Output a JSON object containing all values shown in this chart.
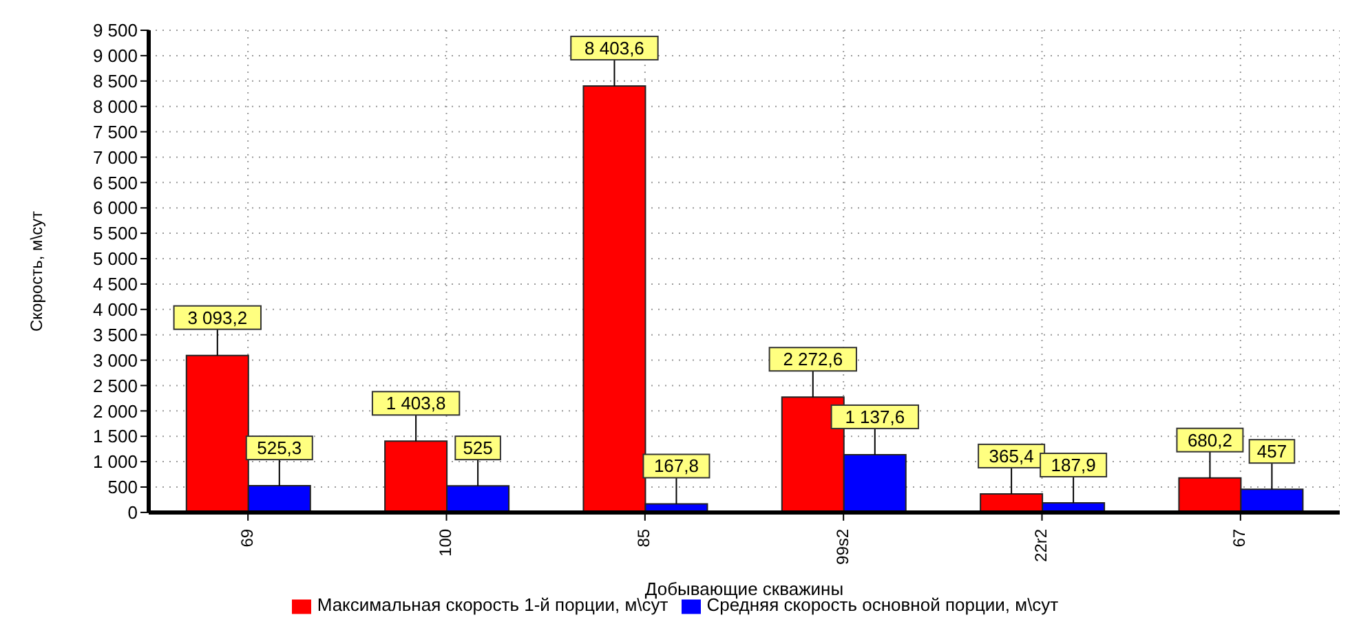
{
  "chart_data": {
    "type": "bar",
    "xlabel": "Добывающие скважины",
    "ylabel": "Скорость, м\\сут",
    "categories": [
      "69",
      "100",
      "85",
      "99s2",
      "22r2",
      "67"
    ],
    "series": [
      {
        "name": "Максимальная скорость 1-й порции, м\\сут",
        "color": "#ff0000",
        "values": [
          3093.2,
          1403.8,
          8403.6,
          2272.6,
          365.4,
          680.2
        ],
        "value_labels": [
          "3 093,2",
          "1 403,8",
          "8 403,6",
          "2 272,6",
          "365,4",
          "680,2"
        ]
      },
      {
        "name": "Средняя скорость основной порции, м\\сут",
        "color": "#0000ff",
        "values": [
          525.3,
          525,
          167.8,
          1137.6,
          187.9,
          457
        ],
        "value_labels": [
          "525,3",
          "525",
          "167,8",
          "1 137,6",
          "187,9",
          "457"
        ]
      }
    ],
    "ylim": [
      0,
      9500
    ],
    "yticks": [
      0,
      500,
      1000,
      1500,
      2000,
      2500,
      3000,
      3500,
      4000,
      4500,
      5000,
      5500,
      6000,
      6500,
      7000,
      7500,
      8000,
      8500,
      9000,
      9500
    ],
    "grid": true,
    "legend": "bottom"
  }
}
